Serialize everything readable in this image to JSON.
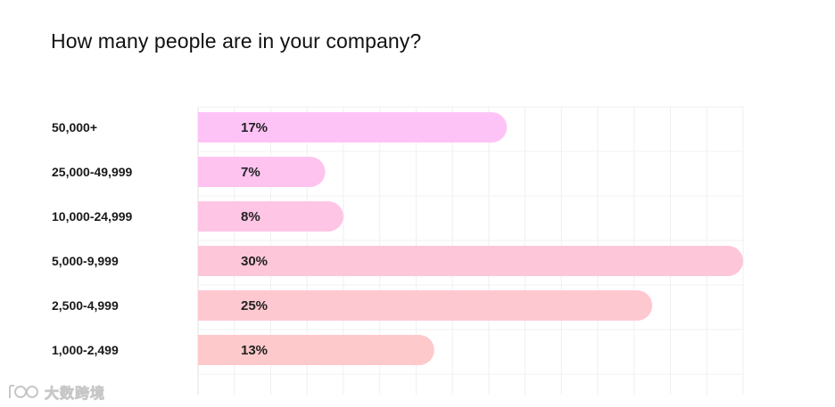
{
  "chart_data": {
    "type": "bar",
    "orientation": "horizontal",
    "title": "How many people are in your company?",
    "categories": [
      "50,000+",
      "25,000-49,999",
      "10,000-24,999",
      "5,000-9,999",
      "2,500-4,999",
      "1,000-2,499"
    ],
    "values": [
      17,
      7,
      8,
      30,
      25,
      13
    ],
    "value_labels": [
      "17%",
      "7%",
      "8%",
      "30%",
      "25%",
      "13%"
    ],
    "xlim": [
      0,
      30
    ],
    "grid": true,
    "bar_colors": [
      "#fec3f6",
      "#fec3ef",
      "#fec5e4",
      "#fec6d9",
      "#fec8d1",
      "#fec9cb"
    ]
  },
  "watermark": {
    "text": "大数跨境",
    "icon": "watermark-logo-icon"
  }
}
